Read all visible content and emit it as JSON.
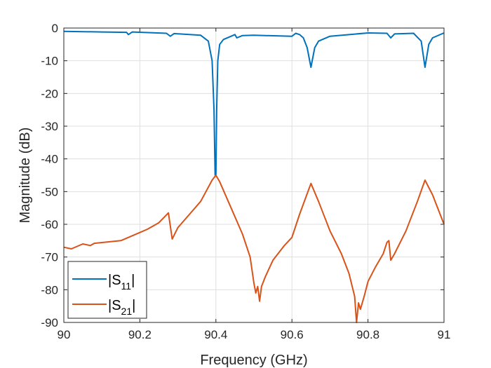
{
  "chart_data": {
    "type": "line",
    "title": "",
    "xlabel": "Frequency (GHz)",
    "ylabel": "Magnitude (dB)",
    "xlim": [
      90,
      91
    ],
    "ylim": [
      -90,
      0
    ],
    "xticks": [
      "90",
      "90.2",
      "90.4",
      "90.6",
      "90.8",
      "91"
    ],
    "xtick_values": [
      90,
      90.2,
      90.4,
      90.6,
      90.8,
      91
    ],
    "yticks": [
      "0",
      "-10",
      "-20",
      "-30",
      "-40",
      "-50",
      "-60",
      "-70",
      "-80",
      "-90"
    ],
    "ytick_values": [
      0,
      -10,
      -20,
      -30,
      -40,
      -50,
      -60,
      -70,
      -80,
      -90
    ],
    "grid": true,
    "legend_position": "bottom-left",
    "series": [
      {
        "name": "|S11|",
        "base": "S",
        "sub": "11",
        "color": "#0072BD",
        "x": [
          90,
          90.1,
          90.165,
          90.17,
          90.18,
          90.27,
          90.28,
          90.29,
          90.36,
          90.38,
          90.39,
          90.395,
          90.398,
          90.4,
          90.402,
          90.405,
          90.41,
          90.42,
          90.44,
          90.45,
          90.455,
          90.47,
          90.5,
          90.6,
          90.61,
          90.62,
          90.63,
          90.64,
          90.65,
          90.66,
          90.67,
          90.7,
          90.8,
          90.85,
          90.86,
          90.87,
          90.92,
          90.94,
          90.95,
          90.96,
          90.97,
          91
        ],
        "y": [
          -1,
          -1.2,
          -1.3,
          -2,
          -1.2,
          -1.6,
          -2.5,
          -1.7,
          -2.2,
          -4,
          -10,
          -25,
          -45,
          -45,
          -25,
          -10,
          -5,
          -3.5,
          -2.5,
          -2,
          -3,
          -2.3,
          -2.2,
          -2.5,
          -1.6,
          -2,
          -3,
          -6,
          -12,
          -6,
          -4,
          -2.5,
          -1.5,
          -1.6,
          -3,
          -1.8,
          -1.6,
          -4,
          -12,
          -5,
          -3,
          -1.5
        ]
      },
      {
        "name": "|S21|",
        "base": "S",
        "sub": "21",
        "color": "#D95319",
        "x": [
          90,
          90.02,
          90.05,
          90.07,
          90.08,
          90.15,
          90.17,
          90.2,
          90.22,
          90.25,
          90.275,
          90.285,
          90.3,
          90.33,
          90.36,
          90.39,
          90.4,
          90.41,
          90.44,
          90.47,
          90.49,
          90.5,
          90.505,
          90.51,
          90.515,
          90.52,
          90.53,
          90.55,
          90.58,
          90.6,
          90.62,
          90.65,
          90.67,
          90.7,
          90.73,
          90.75,
          90.765,
          90.77,
          90.775,
          90.78,
          90.79,
          90.8,
          90.82,
          90.84,
          90.85,
          90.855,
          90.86,
          90.87,
          90.9,
          90.93,
          90.95,
          90.97,
          91
        ],
        "y": [
          -67,
          -67.5,
          -66,
          -66.5,
          -65.8,
          -65,
          -64,
          -62.5,
          -61.5,
          -59.5,
          -56.5,
          -64.5,
          -61,
          -57,
          -53,
          -46.5,
          -45,
          -47,
          -55,
          -63,
          -70,
          -78,
          -81,
          -79,
          -83.5,
          -79,
          -76,
          -71,
          -66.5,
          -64,
          -57,
          -47.5,
          -53,
          -62,
          -69,
          -75,
          -82,
          -90,
          -84,
          -86,
          -82,
          -77.5,
          -73,
          -69,
          -65.5,
          -65,
          -71,
          -69,
          -62,
          -53,
          -46.5,
          -51,
          -60
        ]
      }
    ]
  }
}
